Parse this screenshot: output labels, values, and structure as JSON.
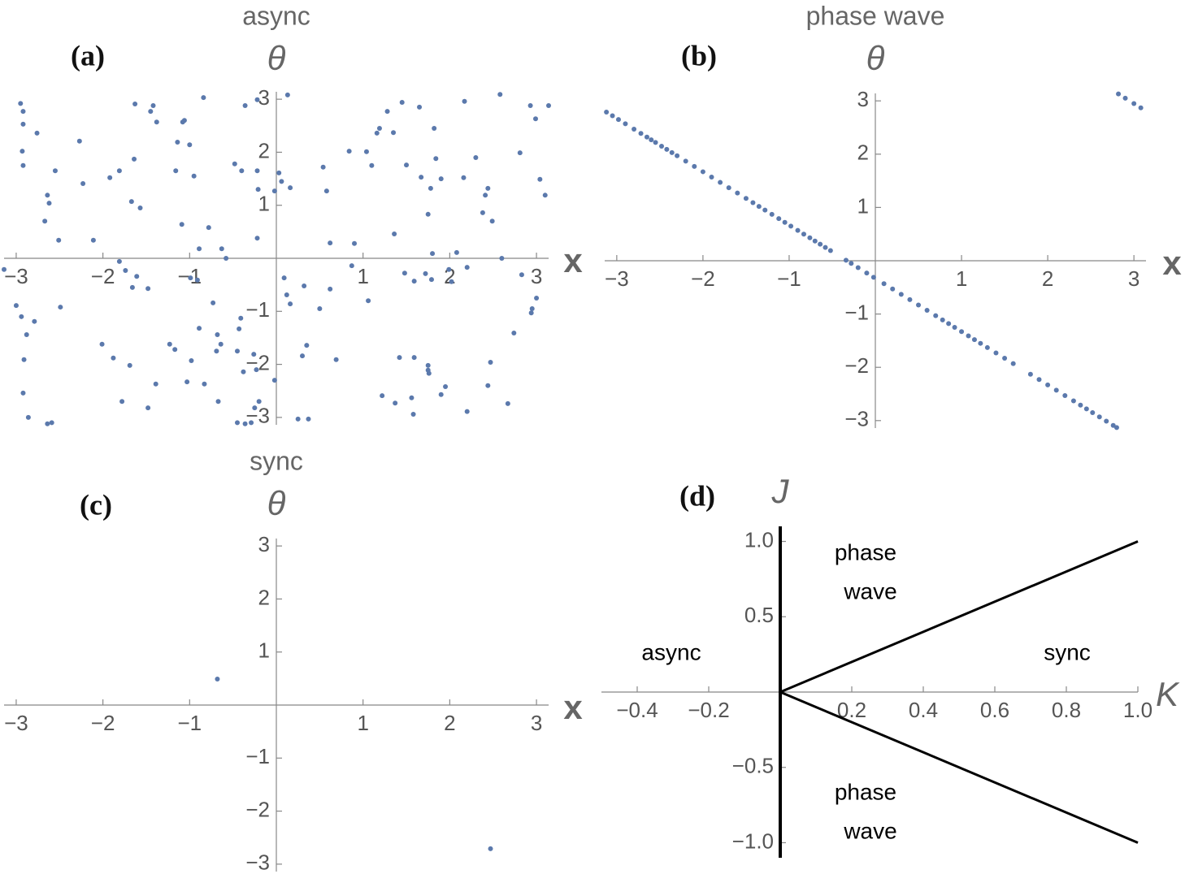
{
  "chart_data": [
    {
      "type": "scatter",
      "panel": "(a)",
      "title": "async",
      "xlabel": "x",
      "ylabel": "θ",
      "color": "#5b79ac",
      "xlim": [
        -3.14,
        3.14
      ],
      "ylim": [
        -3.14,
        3.14
      ],
      "xticks": [
        {
          "value": -3,
          "label": "−3"
        },
        {
          "value": -2,
          "label": "−2"
        },
        {
          "value": -1,
          "label": "−1"
        },
        1,
        2,
        3
      ],
      "yticks": [
        {
          "value": -3,
          "label": "−3"
        },
        {
          "value": -2,
          "label": "−2"
        },
        {
          "value": -1,
          "label": "−1"
        },
        1,
        2,
        3
      ],
      "x": [
        -2.95,
        -2.92,
        -2.92,
        -2.93,
        -2.92,
        -2.76,
        -2.55,
        -2.64,
        -2.62,
        -2.67,
        -2.51,
        -2.27,
        -2.23,
        -2.11,
        -1.92,
        -1.81,
        -1.63,
        -1.64,
        -1.67,
        -1.57,
        -1.45,
        -1.42,
        -1.38,
        -1.16,
        -1.08,
        -1.06,
        -1.14,
        -1.0,
        -1.09,
        -0.95,
        -0.84,
        -0.78,
        -0.89,
        -0.63,
        -0.36,
        -0.22,
        -0.48,
        -0.4,
        -0.22,
        -0.21,
        -0.22,
        -0.58,
        0.13,
        0.03,
        0.06,
        -0.02,
        0.16,
        0.54,
        0.58,
        0.62,
        0.9,
        0.84,
        1.04,
        1.1,
        1.16,
        1.19,
        1.28,
        1.35,
        1.45,
        1.65,
        1.36,
        1.5,
        1.67,
        1.82,
        1.84,
        1.75,
        1.78,
        1.9,
        1.8,
        2.08,
        2.16,
        2.3,
        2.17,
        2.44,
        2.41,
        2.38,
        2.49,
        2.6,
        2.93,
        2.99,
        2.81,
        3.04,
        3.1,
        3.14,
        2.58,
        -3.14,
        -3.0,
        -2.94,
        -2.88,
        -2.79,
        -2.91,
        -2.92,
        -2.86,
        -2.64,
        -2.59,
        -2.49,
        -1.81,
        -1.74,
        -1.66,
        -1.48,
        -1.61,
        -2.01,
        -1.88,
        -1.69,
        -1.78,
        -1.48,
        -1.39,
        -1.23,
        -1.17,
        -1.03,
        -0.98,
        -0.83,
        -0.67,
        -0.89,
        -0.73,
        -0.99,
        -0.91,
        -0.68,
        -0.64,
        -0.69,
        -0.45,
        -0.41,
        -0.43,
        -0.45,
        -0.36,
        -0.29,
        -0.25,
        -0.2,
        -0.23,
        -0.26,
        -0.38,
        -0.02,
        0.09,
        0.16,
        0.12,
        0.25,
        0.37,
        0.3,
        0.35,
        0.32,
        0.5,
        0.62,
        0.69,
        0.87,
        1.06,
        1.22,
        1.37,
        1.42,
        1.48,
        1.56,
        1.58,
        1.59,
        1.75,
        1.75,
        1.76,
        1.9,
        1.95,
        1.59,
        1.72,
        1.79,
        2.02,
        2.2,
        2.2,
        2.44,
        2.47,
        2.74,
        2.95,
        3.0,
        2.94,
        2.83,
        2.67,
        1.99
      ],
      "values": [
        2.92,
        2.77,
        2.53,
        2.02,
        1.75,
        2.36,
        1.65,
        1.19,
        1.04,
        0.7,
        0.34,
        2.21,
        1.41,
        0.34,
        1.52,
        1.65,
        2.91,
        1.87,
        1.07,
        0.95,
        2.77,
        2.88,
        2.57,
        1.65,
        2.57,
        2.6,
        2.19,
        2.14,
        0.64,
        1.55,
        3.03,
        0.58,
        0.18,
        0.18,
        2.88,
        2.99,
        1.78,
        1.65,
        1.65,
        1.3,
        0.38,
        0,
        3.08,
        1.61,
        1.45,
        1.27,
        1.33,
        1.72,
        1.27,
        0.29,
        0.28,
        2.02,
        2.01,
        1.75,
        2.36,
        2.45,
        2.77,
        2.37,
        2.94,
        2.85,
        0.46,
        1.76,
        1.53,
        2.45,
        1.88,
        0.83,
        1.32,
        1.5,
        0.09,
        0.11,
        1.52,
        1.9,
        2.96,
        1.32,
        1.19,
        0.86,
        0.7,
        0,
        2.88,
        2.63,
        1.99,
        1.49,
        1.19,
        2.88,
        3.09,
        -0.21,
        -0.89,
        -1.1,
        -1.44,
        -1.19,
        -1.91,
        -2.54,
        -3.0,
        -3.12,
        -3.1,
        -0.92,
        -0.06,
        -0.23,
        -0.55,
        -0.57,
        -0.34,
        -1.62,
        -1.88,
        -2.02,
        -2.7,
        -2.82,
        -2.37,
        -1.62,
        -1.72,
        -2.33,
        -1.93,
        -2.37,
        -2.7,
        -1.32,
        -0.84,
        -0.37,
        -0.41,
        -1.44,
        -1.62,
        -1.75,
        -1.75,
        -1.13,
        -1.33,
        -3.1,
        -3.12,
        -3.1,
        -2.82,
        -2.7,
        -2.1,
        -1.81,
        -2.14,
        -2.3,
        -0.37,
        -0.86,
        -0.69,
        -3.03,
        -3.03,
        -1.84,
        -1.64,
        -0.52,
        -0.95,
        -0.58,
        -1.91,
        -0.14,
        -0.8,
        -2.59,
        -2.73,
        -1.87,
        -0.28,
        -2.63,
        -2.94,
        -1.87,
        -2.11,
        -2.02,
        -2.17,
        -2.57,
        -2.42,
        -0.43,
        -0.29,
        -0.4,
        -0.44,
        -0.17,
        -2.89,
        -2.4,
        -1.96,
        -1.41,
        -0.95,
        -0.75,
        -1.03,
        -0.31,
        -2.74,
        -0.21
      ]
    },
    {
      "type": "scatter",
      "panel": "(b)",
      "title": "phase wave",
      "xlabel": "x",
      "ylabel": "θ",
      "color": "#5b79ac",
      "xlim": [
        -3.14,
        3.14
      ],
      "ylim": [
        -3.14,
        3.14
      ],
      "xticks": [
        {
          "value": -3,
          "label": "−3"
        },
        {
          "value": -2,
          "label": "−2"
        },
        {
          "value": -1,
          "label": "−1"
        },
        1,
        2,
        3
      ],
      "yticks": [
        {
          "value": -3,
          "label": "−3"
        },
        {
          "value": -2,
          "label": "−2"
        },
        {
          "value": -1,
          "label": "−1"
        },
        1,
        2,
        3
      ],
      "x": [
        -3.12,
        -3.05,
        -2.98,
        -2.9,
        -2.8,
        -2.72,
        -2.65,
        -2.6,
        -2.55,
        -2.48,
        -2.42,
        -2.36,
        -2.3,
        -2.2,
        -2.1,
        -2.0,
        -1.9,
        -1.8,
        -1.7,
        -1.6,
        -1.5,
        -1.42,
        -1.35,
        -1.28,
        -1.2,
        -1.12,
        -1.05,
        -0.98,
        -0.9,
        -0.83,
        -0.76,
        -0.7,
        -0.64,
        -0.58,
        -0.52,
        -0.34,
        -0.28,
        -0.2,
        -0.1,
        -0.02,
        0.1,
        0.2,
        0.3,
        0.4,
        0.5,
        0.6,
        0.7,
        0.78,
        0.85,
        0.92,
        1.0,
        1.08,
        1.15,
        1.22,
        1.3,
        1.4,
        1.5,
        1.6,
        1.8,
        1.9,
        2.0,
        2.1,
        2.2,
        2.3,
        2.38,
        2.45,
        2.52,
        2.6,
        2.68,
        2.76,
        2.8,
        2.82,
        2.9,
        3.0,
        3.08
      ],
      "values": [
        2.79,
        2.72,
        2.65,
        2.57,
        2.47,
        2.39,
        2.32,
        2.27,
        2.22,
        2.15,
        2.09,
        2.03,
        1.97,
        1.87,
        1.77,
        1.67,
        1.57,
        1.47,
        1.37,
        1.27,
        1.17,
        1.09,
        1.02,
        0.95,
        0.87,
        0.79,
        0.72,
        0.65,
        0.57,
        0.5,
        0.43,
        0.37,
        0.31,
        0.25,
        0.19,
        0.01,
        -0.05,
        -0.13,
        -0.23,
        -0.31,
        -0.43,
        -0.53,
        -0.63,
        -0.73,
        -0.83,
        -0.93,
        -1.03,
        -1.11,
        -1.18,
        -1.25,
        -1.33,
        -1.41,
        -1.48,
        -1.55,
        -1.63,
        -1.73,
        -1.83,
        -1.93,
        -2.13,
        -2.23,
        -2.33,
        -2.43,
        -2.53,
        -2.63,
        -2.71,
        -2.78,
        -2.85,
        -2.93,
        -3.01,
        -3.09,
        -3.13,
        3.13,
        3.05,
        2.95,
        2.87
      ]
    },
    {
      "type": "scatter",
      "panel": "(c)",
      "title": "sync",
      "xlabel": "x",
      "ylabel": "θ",
      "color": "#5b79ac",
      "xlim": [
        -3.14,
        3.14
      ],
      "ylim": [
        -3.14,
        3.14
      ],
      "xticks": [
        {
          "value": -3,
          "label": "−3"
        },
        {
          "value": -2,
          "label": "−2"
        },
        {
          "value": -1,
          "label": "−1"
        },
        1,
        2,
        3
      ],
      "yticks": [
        {
          "value": -3,
          "label": "−3"
        },
        {
          "value": -2,
          "label": "−2"
        },
        {
          "value": -1,
          "label": "−1"
        },
        1,
        2,
        3
      ],
      "x": [
        -0.68,
        2.47
      ],
      "values": [
        0.49,
        -2.71
      ]
    },
    {
      "type": "line",
      "panel": "(d)",
      "xlabel": "K",
      "ylabel": "J",
      "color": "#000000",
      "xlim": [
        -0.5,
        1.0
      ],
      "ylim": [
        -1.1,
        1.1
      ],
      "xticks": [
        {
          "value": -0.4,
          "label": "−0.4"
        },
        {
          "value": -0.2,
          "label": "−0.2"
        },
        0.2,
        0.4,
        0.6,
        0.8,
        {
          "value": 1,
          "label": "1.0"
        }
      ],
      "yticks": [
        {
          "value": -1,
          "label": "−1.0"
        },
        {
          "value": -0.5,
          "label": "−0.5"
        },
        0.5,
        {
          "value": 1,
          "label": "1.0"
        }
      ],
      "series": [
        {
          "x": [
            0,
            1
          ],
          "values": [
            0,
            1
          ],
          "linewidth": 3
        },
        {
          "x": [
            0,
            1
          ],
          "values": [
            0,
            -1
          ],
          "linewidth": 3
        },
        {
          "x": [
            0,
            0
          ],
          "values": [
            -1.1,
            1.1
          ],
          "linewidth": 4
        }
      ],
      "annotations": [
        "phase",
        "wave",
        "async",
        "sync",
        "phase",
        "wave"
      ]
    }
  ]
}
